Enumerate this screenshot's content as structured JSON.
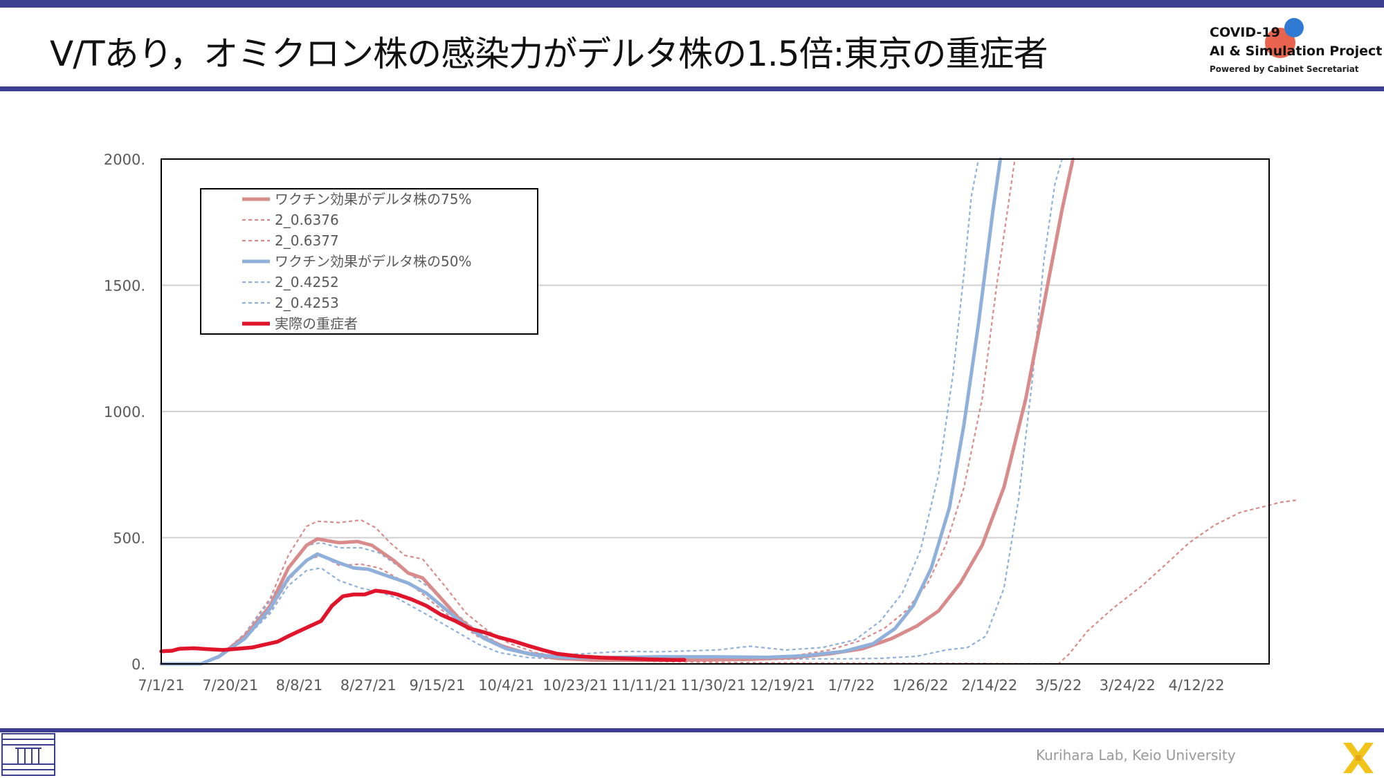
{
  "slide": {
    "title": "V/Tあり，オミクロン株の感染力がデルタ株の1.5倍:東京の重症者",
    "footer": "Kurihara Lab, Keio University"
  },
  "brand": {
    "line1": "COVID-19",
    "line2": "AI & Simulation Project",
    "line3": "Powered by Cabinet Secretariat"
  },
  "colors": {
    "accent_bar": "#3c3f8f",
    "pink": "#d98a8a",
    "blue": "#8fb0da",
    "actual": "#e0142a",
    "grid": "#d0d0d0"
  },
  "chart_data": {
    "type": "line",
    "ylim": [
      0,
      2000
    ],
    "yticks": [
      "0.",
      "500.",
      "1000.",
      "1500.",
      "2000."
    ],
    "ytick_values": [
      0,
      500,
      1000,
      1500,
      2000
    ],
    "xlim": [
      "7/1/21",
      "5/2/22"
    ],
    "xtick_labels": [
      "7/1/21",
      "7/20/21",
      "8/8/21",
      "8/27/21",
      "9/15/21",
      "10/4/21",
      "10/23/21",
      "11/11/21",
      "11/30/21",
      "12/19/21",
      "1/7/22",
      "1/26/22",
      "2/14/22",
      "3/5/22",
      "3/24/22",
      "4/12/22"
    ],
    "xtick_dates": [
      "2021-07-01",
      "2021-07-20",
      "2021-08-08",
      "2021-08-27",
      "2021-09-15",
      "2021-10-04",
      "2021-10-23",
      "2021-11-11",
      "2021-11-30",
      "2021-12-19",
      "2022-01-07",
      "2022-01-26",
      "2022-02-14",
      "2022-03-05",
      "2022-03-24",
      "2022-04-12"
    ],
    "grid": "horizontal",
    "legend_position": "top-left",
    "series": [
      {
        "name": "ワクチン効果がデルタ株の75%",
        "style": "solid",
        "color": "#d98a8a",
        "points": [
          [
            "2021-07-01",
            0
          ],
          [
            "2021-07-12",
            0
          ],
          [
            "2021-07-17",
            30
          ],
          [
            "2021-07-24",
            110
          ],
          [
            "2021-07-31",
            230
          ],
          [
            "2021-08-05",
            380
          ],
          [
            "2021-08-10",
            470
          ],
          [
            "2021-08-13",
            495
          ],
          [
            "2021-08-19",
            480
          ],
          [
            "2021-08-24",
            485
          ],
          [
            "2021-08-28",
            470
          ],
          [
            "2021-09-03",
            410
          ],
          [
            "2021-09-07",
            360
          ],
          [
            "2021-09-11",
            340
          ],
          [
            "2021-09-16",
            260
          ],
          [
            "2021-09-21",
            180
          ],
          [
            "2021-09-27",
            110
          ],
          [
            "2021-10-03",
            70
          ],
          [
            "2021-10-10",
            40
          ],
          [
            "2021-10-18",
            22
          ],
          [
            "2021-10-28",
            15
          ],
          [
            "2021-11-10",
            14
          ],
          [
            "2021-11-25",
            16
          ],
          [
            "2021-12-10",
            18
          ],
          [
            "2021-12-22",
            25
          ],
          [
            "2022-01-01",
            40
          ],
          [
            "2022-01-10",
            60
          ],
          [
            "2022-01-18",
            100
          ],
          [
            "2022-01-25",
            150
          ],
          [
            "2022-01-31",
            210
          ],
          [
            "2022-02-06",
            320
          ],
          [
            "2022-02-12",
            470
          ],
          [
            "2022-02-18",
            700
          ],
          [
            "2022-02-24",
            1050
          ],
          [
            "2022-03-02",
            1500
          ],
          [
            "2022-03-06",
            1800
          ],
          [
            "2022-03-09",
            2000
          ]
        ]
      },
      {
        "name": "2_0.6376",
        "style": "dashed",
        "color": "#d98a8a",
        "points": [
          [
            "2021-07-01",
            0
          ],
          [
            "2021-07-12",
            0
          ],
          [
            "2021-07-17",
            30
          ],
          [
            "2021-07-24",
            120
          ],
          [
            "2021-07-31",
            260
          ],
          [
            "2021-08-05",
            430
          ],
          [
            "2021-08-10",
            545
          ],
          [
            "2021-08-13",
            565
          ],
          [
            "2021-08-19",
            560
          ],
          [
            "2021-08-25",
            570
          ],
          [
            "2021-08-29",
            540
          ],
          [
            "2021-09-02",
            480
          ],
          [
            "2021-09-06",
            430
          ],
          [
            "2021-09-11",
            415
          ],
          [
            "2021-09-17",
            310
          ],
          [
            "2021-09-23",
            200
          ],
          [
            "2021-09-29",
            130
          ],
          [
            "2021-10-05",
            80
          ],
          [
            "2021-10-12",
            45
          ],
          [
            "2021-10-20",
            25
          ],
          [
            "2021-10-30",
            18
          ],
          [
            "2021-11-10",
            16
          ],
          [
            "2021-11-25",
            18
          ],
          [
            "2021-12-10",
            22
          ],
          [
            "2021-12-22",
            32
          ],
          [
            "2022-01-01",
            55
          ],
          [
            "2022-01-09",
            90
          ],
          [
            "2022-01-16",
            140
          ],
          [
            "2022-01-22",
            210
          ],
          [
            "2022-01-28",
            320
          ],
          [
            "2022-02-02",
            470
          ],
          [
            "2022-02-07",
            700
          ],
          [
            "2022-02-12",
            1050
          ],
          [
            "2022-02-16",
            1500
          ],
          [
            "2022-02-19",
            1800
          ],
          [
            "2022-02-21",
            2000
          ]
        ]
      },
      {
        "name": "2_0.6377",
        "style": "dashed",
        "color": "#d98a8a",
        "points": [
          [
            "2021-07-01",
            0
          ],
          [
            "2021-07-12",
            0
          ],
          [
            "2021-07-17",
            25
          ],
          [
            "2021-07-24",
            100
          ],
          [
            "2021-07-31",
            210
          ],
          [
            "2021-08-05",
            330
          ],
          [
            "2021-08-10",
            410
          ],
          [
            "2021-08-14",
            430
          ],
          [
            "2021-08-19",
            390
          ],
          [
            "2021-08-25",
            395
          ],
          [
            "2021-08-30",
            380
          ],
          [
            "2021-09-04",
            340
          ],
          [
            "2021-09-09",
            300
          ],
          [
            "2021-09-14",
            240
          ],
          [
            "2021-09-20",
            170
          ],
          [
            "2021-09-26",
            110
          ],
          [
            "2021-10-02",
            70
          ],
          [
            "2021-10-08",
            45
          ],
          [
            "2021-10-16",
            25
          ],
          [
            "2021-10-26",
            14
          ],
          [
            "2021-11-10",
            10
          ],
          [
            "2021-12-01",
            6
          ],
          [
            "2021-12-20",
            4
          ],
          [
            "2022-01-10",
            3
          ],
          [
            "2022-02-10",
            2
          ],
          [
            "2022-03-05",
            0
          ],
          [
            "2022-03-08",
            40
          ],
          [
            "2022-03-13",
            130
          ],
          [
            "2022-03-20",
            220
          ],
          [
            "2022-03-28",
            310
          ],
          [
            "2022-04-04",
            400
          ],
          [
            "2022-04-10",
            480
          ],
          [
            "2022-04-17",
            550
          ],
          [
            "2022-04-24",
            600
          ],
          [
            "2022-05-01",
            625
          ],
          [
            "2022-05-05",
            640
          ],
          [
            "2022-05-10",
            650
          ]
        ]
      },
      {
        "name": "ワクチン効果がデルタ株の50%",
        "style": "solid",
        "color": "#8fb0da",
        "points": [
          [
            "2021-07-01",
            0
          ],
          [
            "2021-07-12",
            0
          ],
          [
            "2021-07-17",
            30
          ],
          [
            "2021-07-24",
            100
          ],
          [
            "2021-07-31",
            220
          ],
          [
            "2021-08-05",
            340
          ],
          [
            "2021-08-10",
            410
          ],
          [
            "2021-08-13",
            435
          ],
          [
            "2021-08-19",
            400
          ],
          [
            "2021-08-23",
            380
          ],
          [
            "2021-08-27",
            375
          ],
          [
            "2021-09-02",
            345
          ],
          [
            "2021-09-07",
            320
          ],
          [
            "2021-09-12",
            280
          ],
          [
            "2021-09-17",
            220
          ],
          [
            "2021-09-22",
            160
          ],
          [
            "2021-09-28",
            100
          ],
          [
            "2021-10-04",
            60
          ],
          [
            "2021-10-12",
            35
          ],
          [
            "2021-10-20",
            25
          ],
          [
            "2021-11-01",
            25
          ],
          [
            "2021-11-15",
            28
          ],
          [
            "2021-11-30",
            28
          ],
          [
            "2021-12-15",
            26
          ],
          [
            "2021-12-25",
            32
          ],
          [
            "2022-01-05",
            50
          ],
          [
            "2022-01-13",
            80
          ],
          [
            "2022-01-19",
            140
          ],
          [
            "2022-01-24",
            230
          ],
          [
            "2022-01-29",
            380
          ],
          [
            "2022-02-03",
            620
          ],
          [
            "2022-02-07",
            950
          ],
          [
            "2022-02-11",
            1350
          ],
          [
            "2022-02-15",
            1800
          ],
          [
            "2022-02-17",
            2000
          ]
        ]
      },
      {
        "name": "2_0.4252",
        "style": "dashed",
        "color": "#8fb0da",
        "points": [
          [
            "2021-07-01",
            0
          ],
          [
            "2021-07-12",
            0
          ],
          [
            "2021-07-17",
            30
          ],
          [
            "2021-07-24",
            120
          ],
          [
            "2021-07-31",
            250
          ],
          [
            "2021-08-05",
            380
          ],
          [
            "2021-08-10",
            470
          ],
          [
            "2021-08-14",
            480
          ],
          [
            "2021-08-19",
            460
          ],
          [
            "2021-08-25",
            460
          ],
          [
            "2021-08-30",
            440
          ],
          [
            "2021-09-04",
            390
          ],
          [
            "2021-09-09",
            340
          ],
          [
            "2021-09-14",
            290
          ],
          [
            "2021-09-20",
            200
          ],
          [
            "2021-09-26",
            130
          ],
          [
            "2021-10-02",
            80
          ],
          [
            "2021-10-08",
            50
          ],
          [
            "2021-10-16",
            35
          ],
          [
            "2021-10-25",
            40
          ],
          [
            "2021-11-05",
            50
          ],
          [
            "2021-11-15",
            48
          ],
          [
            "2021-12-01",
            55
          ],
          [
            "2021-12-10",
            70
          ],
          [
            "2021-12-20",
            55
          ],
          [
            "2021-12-30",
            65
          ],
          [
            "2022-01-08",
            95
          ],
          [
            "2022-01-15",
            170
          ],
          [
            "2022-01-21",
            280
          ],
          [
            "2022-01-26",
            450
          ],
          [
            "2022-01-31",
            750
          ],
          [
            "2022-02-04",
            1150
          ],
          [
            "2022-02-07",
            1550
          ],
          [
            "2022-02-09",
            1850
          ],
          [
            "2022-02-11",
            2000
          ]
        ]
      },
      {
        "name": "2_0.4253",
        "style": "dashed",
        "color": "#8fb0da",
        "points": [
          [
            "2021-07-01",
            0
          ],
          [
            "2021-07-12",
            0
          ],
          [
            "2021-07-17",
            25
          ],
          [
            "2021-07-24",
            100
          ],
          [
            "2021-07-31",
            200
          ],
          [
            "2021-08-05",
            310
          ],
          [
            "2021-08-10",
            370
          ],
          [
            "2021-08-14",
            380
          ],
          [
            "2021-08-19",
            330
          ],
          [
            "2021-08-25",
            300
          ],
          [
            "2021-08-30",
            285
          ],
          [
            "2021-09-04",
            260
          ],
          [
            "2021-09-09",
            220
          ],
          [
            "2021-09-14",
            180
          ],
          [
            "2021-09-20",
            130
          ],
          [
            "2021-09-26",
            80
          ],
          [
            "2021-10-02",
            45
          ],
          [
            "2021-10-10",
            25
          ],
          [
            "2021-10-20",
            18
          ],
          [
            "2021-11-01",
            15
          ],
          [
            "2021-11-20",
            12
          ],
          [
            "2021-12-10",
            15
          ],
          [
            "2021-12-25",
            20
          ],
          [
            "2022-01-05",
            20
          ],
          [
            "2022-01-15",
            22
          ],
          [
            "2022-01-25",
            30
          ],
          [
            "2022-02-02",
            55
          ],
          [
            "2022-02-08",
            65
          ],
          [
            "2022-02-13",
            110
          ],
          [
            "2022-02-18",
            300
          ],
          [
            "2022-02-22",
            650
          ],
          [
            "2022-02-26",
            1150
          ],
          [
            "2022-03-01",
            1600
          ],
          [
            "2022-03-04",
            1900
          ],
          [
            "2022-03-06",
            2000
          ]
        ]
      },
      {
        "name": "実際の重症者",
        "style": "solid-bold",
        "color": "#e0142a",
        "points": [
          [
            "2021-07-01",
            50
          ],
          [
            "2021-07-04",
            52
          ],
          [
            "2021-07-06",
            60
          ],
          [
            "2021-07-10",
            62
          ],
          [
            "2021-07-14",
            58
          ],
          [
            "2021-07-18",
            55
          ],
          [
            "2021-07-22",
            60
          ],
          [
            "2021-07-26",
            65
          ],
          [
            "2021-07-30",
            78
          ],
          [
            "2021-08-02",
            88
          ],
          [
            "2021-08-05",
            110
          ],
          [
            "2021-08-08",
            130
          ],
          [
            "2021-08-11",
            150
          ],
          [
            "2021-08-14",
            170
          ],
          [
            "2021-08-17",
            230
          ],
          [
            "2021-08-20",
            268
          ],
          [
            "2021-08-23",
            275
          ],
          [
            "2021-08-26",
            275
          ],
          [
            "2021-08-29",
            290
          ],
          [
            "2021-09-01",
            285
          ],
          [
            "2021-09-04",
            275
          ],
          [
            "2021-09-08",
            255
          ],
          [
            "2021-09-12",
            230
          ],
          [
            "2021-09-16",
            195
          ],
          [
            "2021-09-20",
            170
          ],
          [
            "2021-09-24",
            140
          ],
          [
            "2021-09-28",
            125
          ],
          [
            "2021-10-02",
            105
          ],
          [
            "2021-10-06",
            90
          ],
          [
            "2021-10-10",
            72
          ],
          [
            "2021-10-14",
            55
          ],
          [
            "2021-10-18",
            40
          ],
          [
            "2021-10-24",
            30
          ],
          [
            "2021-10-30",
            25
          ],
          [
            "2021-11-05",
            22
          ],
          [
            "2021-11-12",
            18
          ],
          [
            "2021-11-19",
            16
          ],
          [
            "2021-11-22",
            16
          ]
        ]
      }
    ]
  }
}
